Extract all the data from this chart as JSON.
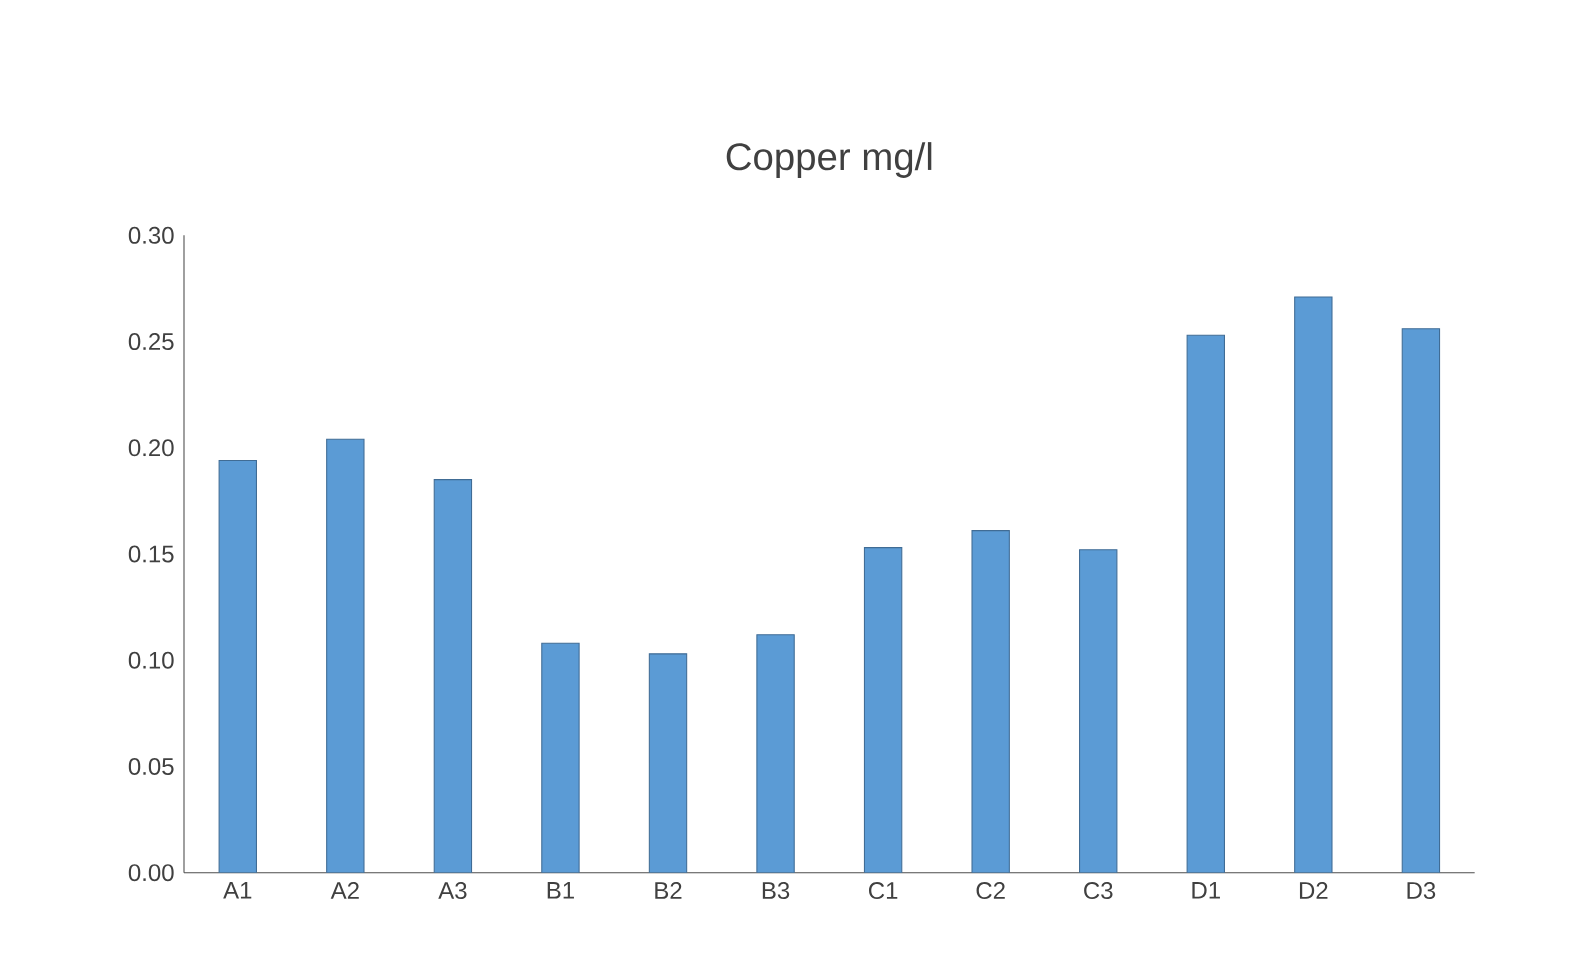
{
  "chart_data": {
    "type": "bar",
    "title": "Copper mg/l",
    "categories": [
      "A1",
      "A2",
      "A3",
      "B1",
      "B2",
      "B3",
      "C1",
      "C2",
      "C3",
      "D1",
      "D2",
      "D3"
    ],
    "values": [
      0.194,
      0.204,
      0.185,
      0.108,
      0.103,
      0.112,
      0.153,
      0.161,
      0.152,
      0.253,
      0.271,
      0.256
    ],
    "color": "#5b9bd5",
    "ylim": [
      0,
      0.3
    ],
    "yticks": [
      {
        "value": 0,
        "label": "0.00"
      },
      {
        "value": 0.05,
        "label": "0.05"
      },
      {
        "value": 0.1,
        "label": "0.10"
      },
      {
        "value": 0.15,
        "label": "0.15"
      },
      {
        "value": 0.2,
        "label": "0.20"
      },
      {
        "value": 0.25,
        "label": "0.25"
      },
      {
        "value": 0.3,
        "label": "0.30"
      }
    ],
    "grid": false
  }
}
